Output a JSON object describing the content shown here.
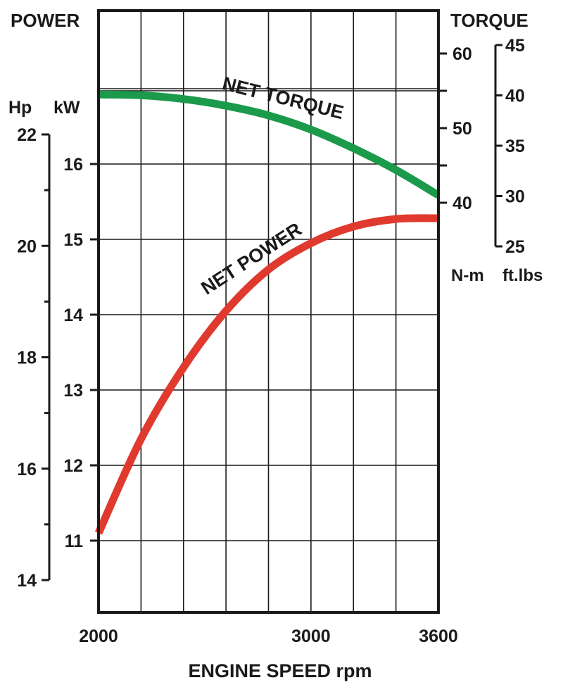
{
  "chart_data": {
    "type": "line",
    "title": "",
    "xlabel": "ENGINE SPEED rpm",
    "x_ticks": [
      2000,
      3000,
      3600
    ],
    "xlim": [
      2000,
      3600
    ],
    "x_grid_step": 200,
    "power_label": "POWER",
    "torque_label": "TORQUE",
    "axes": {
      "hp": {
        "unit": "Hp",
        "ticks": [
          14,
          16,
          18,
          20,
          22
        ],
        "minor_ticks": [
          15,
          17,
          19,
          21
        ]
      },
      "kw": {
        "unit": "kW",
        "ticks": [
          11,
          12,
          13,
          14,
          15,
          16
        ],
        "range": [
          10,
          18
        ]
      },
      "nm": {
        "unit": "N-m",
        "ticks": [
          40,
          50,
          60
        ],
        "minor_ticks": [
          45,
          55
        ]
      },
      "ftlbs": {
        "unit": "ft.lbs",
        "ticks": [
          25,
          30,
          35,
          40,
          45
        ]
      }
    },
    "series": [
      {
        "name": "NET TORQUE",
        "color": "#1a9a4a",
        "unit": "N-m",
        "x": [
          2000,
          2200,
          2400,
          2600,
          2800,
          3000,
          3200,
          3400,
          3600
        ],
        "y": [
          54.5,
          54.4,
          53.9,
          53.0,
          51.7,
          49.8,
          47.3,
          44.4,
          41.0
        ]
      },
      {
        "name": "NET POWER",
        "color": "#e03a2e",
        "unit": "kW",
        "x": [
          2000,
          2200,
          2400,
          2600,
          2800,
          3000,
          3200,
          3400,
          3600
        ],
        "y": [
          11.1,
          12.35,
          13.3,
          14.05,
          14.6,
          14.95,
          15.17,
          15.27,
          15.28
        ]
      }
    ],
    "grid": true
  }
}
